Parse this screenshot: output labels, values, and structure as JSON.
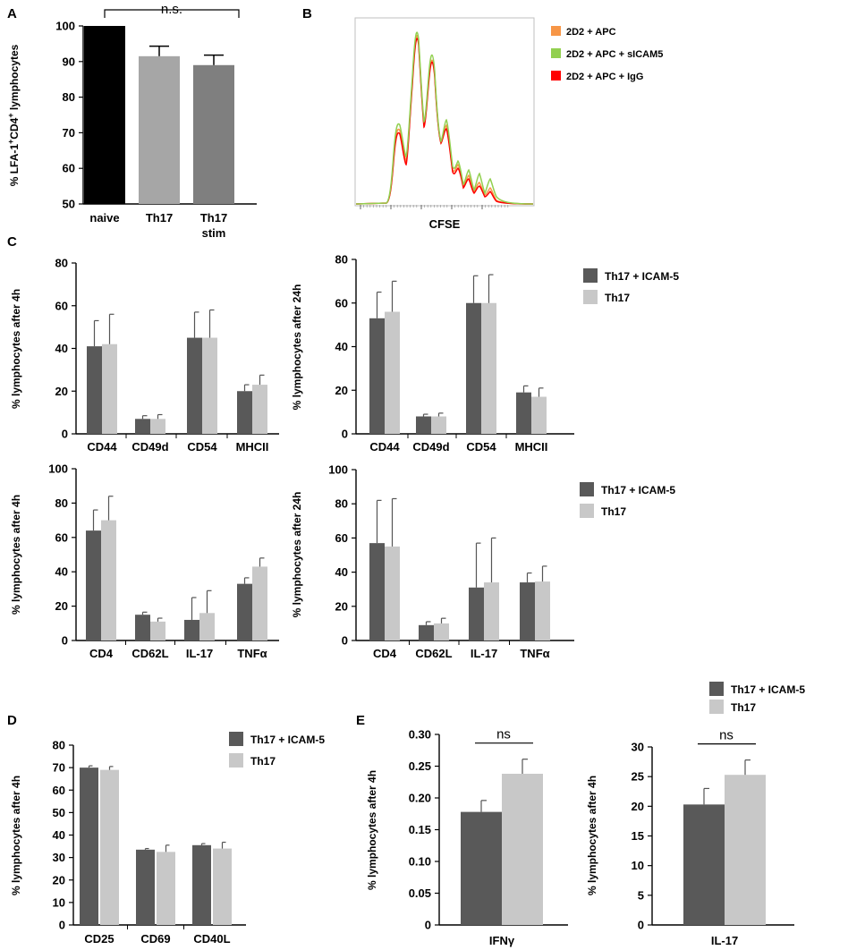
{
  "panels": {
    "A": {
      "label": "A",
      "chart_data": {
        "type": "bar",
        "categories": [
          "naive",
          "Th17",
          "Th17 stim"
        ],
        "values": [
          100,
          91.5,
          89
        ],
        "errors": [
          0,
          2.8,
          2.8
        ],
        "colors": [
          "#000000",
          "#a6a6a6",
          "#7f7f7f"
        ],
        "ylabel": "% LFA-1+CD4+ lymphocytes",
        "ylim": [
          50,
          100
        ],
        "yticks": [
          50,
          60,
          70,
          80,
          90,
          100
        ],
        "significance": "n.s."
      }
    },
    "B": {
      "label": "B",
      "chart_data": {
        "type": "line",
        "xlabel": "CFSE",
        "legend": [
          "2D2 + APC",
          "2D2 + APC + sICAM5",
          "2D2 + APC + IgG"
        ],
        "legend_colors": [
          "#f79646",
          "#92d050",
          "#ff0000"
        ]
      }
    },
    "C": {
      "label": "C",
      "legend": [
        "Th17 + ICAM-5",
        "Th17"
      ],
      "charts": [
        {
          "type": "bar",
          "ylabel": "% lymphocytes after 4h",
          "categories": [
            "CD44",
            "CD49d",
            "CD54",
            "MHCII"
          ],
          "series": [
            {
              "name": "Th17 + ICAM-5",
              "values": [
                41,
                7,
                45,
                20
              ],
              "errors": [
                12,
                1.5,
                12,
                3
              ]
            },
            {
              "name": "Th17",
              "values": [
                42,
                7,
                45,
                23
              ],
              "errors": [
                14,
                2,
                13,
                4.5
              ]
            }
          ],
          "ylim": [
            0,
            80
          ],
          "yticks": [
            0,
            20,
            40,
            60,
            80
          ]
        },
        {
          "type": "bar",
          "ylabel": "% lymphocytes after 24h",
          "categories": [
            "CD44",
            "CD49d",
            "CD54",
            "MHCII"
          ],
          "series": [
            {
              "name": "Th17 + ICAM-5",
              "values": [
                53,
                8,
                60,
                19
              ],
              "errors": [
                12,
                1,
                12.5,
                3
              ]
            },
            {
              "name": "Th17",
              "values": [
                56,
                8,
                60,
                17
              ],
              "errors": [
                14,
                1.5,
                13,
                4
              ]
            }
          ],
          "ylim": [
            0,
            80
          ],
          "yticks": [
            0,
            20,
            40,
            60,
            80
          ]
        },
        {
          "type": "bar",
          "ylabel": "% lymphocytes after 4h",
          "categories": [
            "CD4",
            "CD62L",
            "IL-17",
            "TNFα"
          ],
          "series": [
            {
              "name": "Th17 + ICAM-5",
              "values": [
                64,
                15,
                12,
                33
              ],
              "errors": [
                12,
                1.5,
                13,
                3.5
              ]
            },
            {
              "name": "Th17",
              "values": [
                70,
                11,
                16,
                43
              ],
              "errors": [
                14,
                2,
                13,
                5
              ]
            }
          ],
          "ylim": [
            0,
            100
          ],
          "yticks": [
            0,
            20,
            40,
            60,
            80,
            100
          ]
        },
        {
          "type": "bar",
          "ylabel": "% lymphocytes after 24h",
          "categories": [
            "CD4",
            "CD62L",
            "IL-17",
            "TNFα"
          ],
          "series": [
            {
              "name": "Th17 + ICAM-5",
              "values": [
                57,
                9,
                31,
                34
              ],
              "errors": [
                25,
                2,
                26,
                5.5
              ]
            },
            {
              "name": "Th17",
              "values": [
                55,
                10,
                34,
                34.5
              ],
              "errors": [
                28,
                3,
                26,
                9
              ]
            }
          ],
          "ylim": [
            0,
            100
          ],
          "yticks": [
            0,
            20,
            40,
            60,
            80,
            100
          ]
        }
      ]
    },
    "D": {
      "label": "D",
      "legend": [
        "Th17 + ICAM-5",
        "Th17"
      ],
      "chart_data": {
        "type": "bar",
        "ylabel": "% lymphocytes after 4h",
        "categories": [
          "CD25",
          "CD69",
          "CD40L"
        ],
        "series": [
          {
            "name": "Th17 + ICAM-5",
            "values": [
              70,
              33.5,
              35.5
            ],
            "errors": [
              0.8,
              0.5,
              0.7
            ]
          },
          {
            "name": "Th17",
            "values": [
              69,
              32.5,
              34
            ],
            "errors": [
              1.5,
              3,
              2.8
            ]
          }
        ],
        "ylim": [
          0,
          80
        ],
        "yticks": [
          0,
          10,
          20,
          30,
          40,
          50,
          60,
          70,
          80
        ]
      }
    },
    "E": {
      "label": "E",
      "legend": [
        "Th17 + ICAM-5",
        "Th17"
      ],
      "charts": [
        {
          "type": "bar",
          "ylabel": "% lymphocytes after 4h",
          "categories": [
            "IFNγ"
          ],
          "series": [
            {
              "name": "Th17 + ICAM-5",
              "values": [
                0.178
              ],
              "errors": [
                0.018
              ]
            },
            {
              "name": "Th17",
              "values": [
                0.238
              ],
              "errors": [
                0.023
              ]
            }
          ],
          "ylim": [
            0,
            0.3
          ],
          "yticks": [
            "0",
            "0.05",
            "0.10",
            "0.15",
            "0.20",
            "0.25",
            "0.30"
          ],
          "significance": "ns"
        },
        {
          "type": "bar",
          "ylabel": "% lymphocytes after 4h",
          "categories": [
            "IL-17"
          ],
          "series": [
            {
              "name": "Th17 + ICAM-5",
              "values": [
                20.3
              ],
              "errors": [
                2.7
              ]
            },
            {
              "name": "Th17",
              "values": [
                25.3
              ],
              "errors": [
                2.5
              ]
            }
          ],
          "ylim": [
            0,
            30
          ],
          "yticks": [
            "0",
            "5",
            "10",
            "15",
            "20",
            "25",
            "30"
          ],
          "significance": "ns"
        }
      ]
    }
  },
  "colors": {
    "dark": "#595959",
    "light": "#c8c8c8"
  }
}
